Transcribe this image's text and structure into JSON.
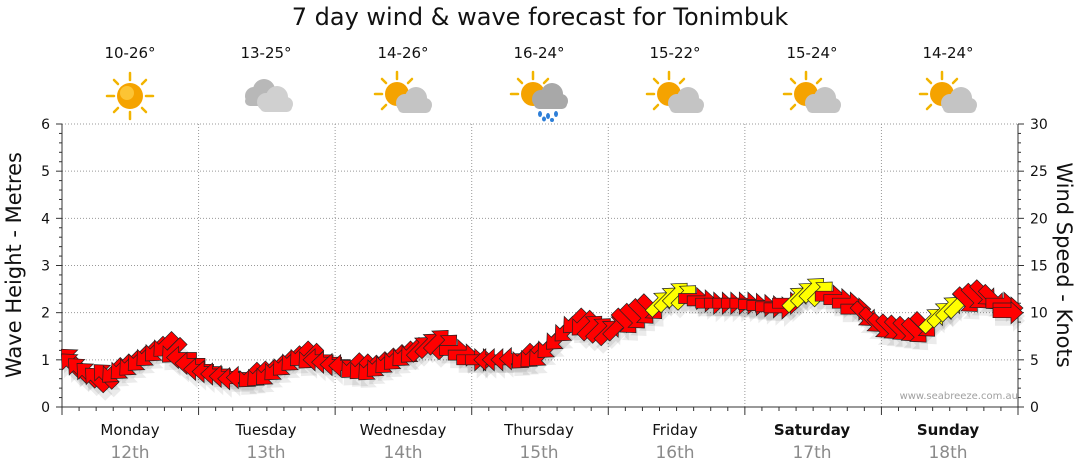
{
  "chart_data": {
    "type": "line",
    "title": "7 day wind & wave forecast for Tonimbuk",
    "ylabel_left": "Wave Height - Metres",
    "ylabel_right": "Wind Speed - Knots",
    "y_left_range": [
      0,
      6
    ],
    "y_left_ticks": [
      "0",
      "1",
      "2",
      "3",
      "4",
      "5",
      "6"
    ],
    "y_right_range": [
      0,
      30
    ],
    "y_right_ticks": [
      "0",
      "5",
      "10",
      "15",
      "20",
      "25",
      "30"
    ],
    "grid": true,
    "colors": {
      "wind_arrow_strong": "#ff0000",
      "wind_arrow_light": "#ffff00",
      "arrow_outline": "#222222",
      "grid": "#999999",
      "axis": "#333333"
    },
    "days": [
      {
        "name": "Monday",
        "date": "12th",
        "temps": "10-26°",
        "icon": "sunny-icon",
        "weekend": false
      },
      {
        "name": "Tuesday",
        "date": "13th",
        "temps": "13-25°",
        "icon": "cloudy-icon",
        "weekend": false
      },
      {
        "name": "Wednesday",
        "date": "14th",
        "temps": "14-26°",
        "icon": "partly-cloudy-icon",
        "weekend": false
      },
      {
        "name": "Thursday",
        "date": "15th",
        "temps": "16-24°",
        "icon": "showers-icon",
        "weekend": false
      },
      {
        "name": "Friday",
        "date": "16th",
        "temps": "15-22°",
        "icon": "partly-cloudy-icon",
        "weekend": false
      },
      {
        "name": "Saturday",
        "date": "17th",
        "temps": "15-24°",
        "icon": "partly-cloudy-icon",
        "weekend": true
      },
      {
        "name": "Sunday",
        "date": "18th",
        "temps": "14-24°",
        "icon": "partly-cloudy-icon",
        "weekend": true
      }
    ],
    "series": [
      {
        "name": "Wind Speed - Knots",
        "x_days": [
          0.0,
          0.25,
          0.5,
          0.75,
          1.0,
          1.25,
          1.5,
          1.75,
          2.0,
          2.25,
          2.5,
          2.75,
          3.0,
          3.25,
          3.5,
          3.75,
          4.0,
          4.25,
          4.5,
          4.75,
          5.0,
          5.25,
          5.5,
          5.75,
          6.0,
          6.25,
          6.5,
          6.75,
          7.0
        ],
        "values": [
          5,
          3,
          4.5,
          6.5,
          4,
          3,
          3.5,
          5.5,
          4.5,
          4,
          5.5,
          7,
          5,
          5,
          5.5,
          9,
          8,
          10,
          12,
          11,
          11,
          10.5,
          12.5,
          11,
          8.5,
          8,
          10.5,
          12,
          10
        ],
        "directions": [
          "NW",
          "NW",
          "SW",
          "SW",
          "W",
          "W",
          "SW",
          "SW",
          "W",
          "SW",
          "SW",
          "NE",
          "E",
          "W",
          "SW",
          "SW",
          "NE",
          "SE",
          "NE",
          "E",
          "E",
          "E",
          "NE",
          "E",
          "SE",
          "SE",
          "NE",
          "SE",
          "E"
        ],
        "light": [
          false,
          false,
          false,
          false,
          false,
          false,
          false,
          false,
          false,
          false,
          false,
          false,
          false,
          false,
          false,
          false,
          false,
          false,
          true,
          false,
          false,
          false,
          true,
          false,
          false,
          false,
          true,
          false,
          false
        ]
      }
    ]
  },
  "watermark": "www.seabreeze.com.au"
}
